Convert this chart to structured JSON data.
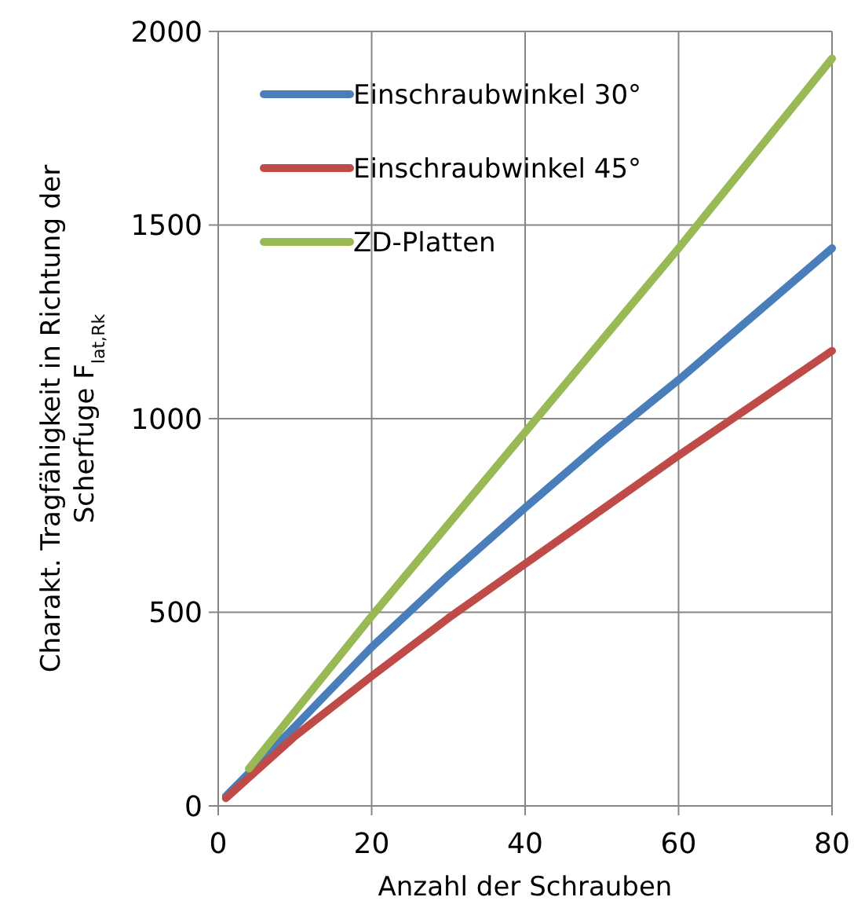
{
  "chart_data": {
    "type": "line",
    "xlabel": "Anzahl der Schrauben",
    "ylabel": "Charakt. Tragfähigkeit in Richtung der\nScherfuge F$_{lat,Rk}$",
    "xlim": [
      0,
      80
    ],
    "xticks": [
      0,
      20,
      40,
      60,
      80
    ],
    "ylim": [
      0,
      2000
    ],
    "yticks": [
      0,
      500,
      1000,
      1500,
      2000
    ],
    "grid": true,
    "legend": "top left",
    "marker": "none",
    "line_style": "solid",
    "series": [
      {
        "name": "Einschraubwinkel 30°",
        "color": "#4a7ebb",
        "x": [
          1,
          10,
          20,
          30,
          40,
          50,
          60,
          70,
          80
        ],
        "values": [
          25,
          205,
          410,
          595,
          770,
          940,
          1100,
          1270,
          1440
        ]
      },
      {
        "name": "Einschraubwinkel 45°",
        "color": "#be4b48",
        "x": [
          1,
          10,
          20,
          30,
          40,
          50,
          60,
          70,
          80
        ],
        "values": [
          20,
          180,
          335,
          485,
          625,
          765,
          905,
          1040,
          1175
        ]
      },
      {
        "name": "ZD-Platten",
        "color": "#98b954",
        "x": [
          4,
          20,
          40,
          60,
          80
        ],
        "values": [
          96,
          490,
          965,
          1440,
          1930
        ]
      }
    ]
  }
}
